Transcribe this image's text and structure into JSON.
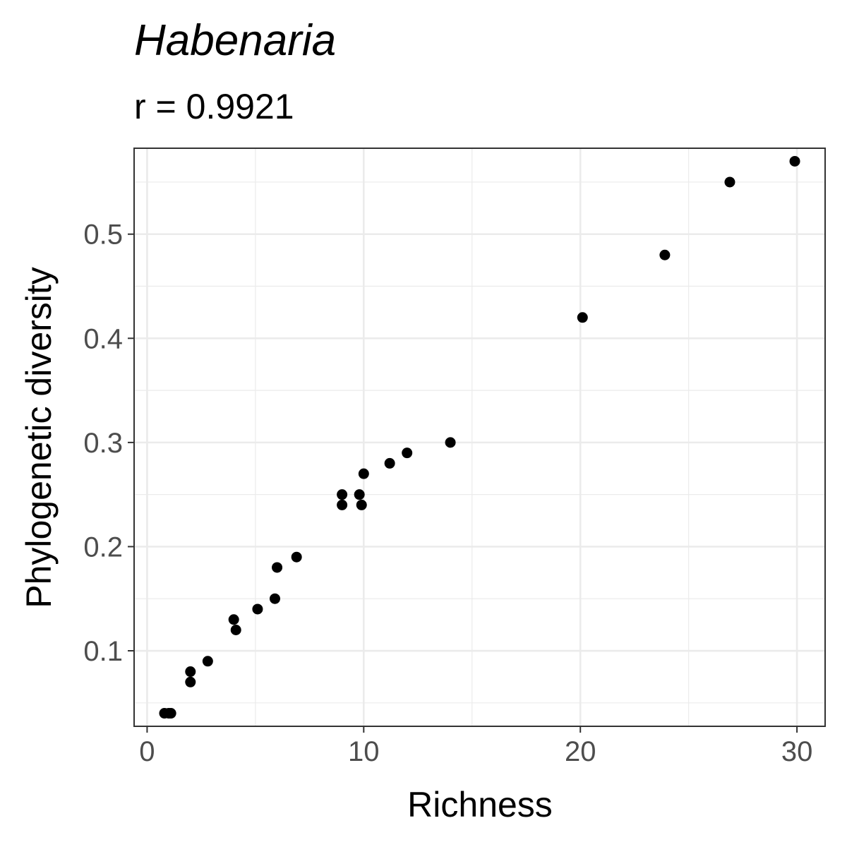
{
  "chart_data": {
    "type": "scatter",
    "title": "Habenaria",
    "subtitle": "r = 0.9921",
    "xlabel": "Richness",
    "ylabel": "Phylogenetic diversity",
    "xlim": [
      -0.6,
      31.3
    ],
    "ylim": [
      0.0275,
      0.5825
    ],
    "x_ticks": [
      0,
      10,
      20,
      30
    ],
    "y_ticks": [
      0.1,
      0.2,
      0.3,
      0.4,
      0.5
    ],
    "x_tick_labels": [
      "0",
      "10",
      "20",
      "30"
    ],
    "y_tick_labels": [
      "0.1",
      "0.2",
      "0.3",
      "0.4",
      "0.5"
    ],
    "grid": true,
    "point_color": "#000000",
    "points": [
      {
        "x": 0.8,
        "y": 0.04
      },
      {
        "x": 1.0,
        "y": 0.04
      },
      {
        "x": 1.1,
        "y": 0.04
      },
      {
        "x": 2.0,
        "y": 0.07
      },
      {
        "x": 2.0,
        "y": 0.08
      },
      {
        "x": 2.8,
        "y": 0.09
      },
      {
        "x": 4.0,
        "y": 0.13
      },
      {
        "x": 4.1,
        "y": 0.12
      },
      {
        "x": 5.1,
        "y": 0.14
      },
      {
        "x": 5.9,
        "y": 0.15
      },
      {
        "x": 6.0,
        "y": 0.18
      },
      {
        "x": 6.9,
        "y": 0.19
      },
      {
        "x": 9.0,
        "y": 0.25
      },
      {
        "x": 9.0,
        "y": 0.24
      },
      {
        "x": 9.8,
        "y": 0.25
      },
      {
        "x": 9.9,
        "y": 0.24
      },
      {
        "x": 10.0,
        "y": 0.27
      },
      {
        "x": 11.2,
        "y": 0.28
      },
      {
        "x": 12.0,
        "y": 0.29
      },
      {
        "x": 14.0,
        "y": 0.3
      },
      {
        "x": 20.1,
        "y": 0.42
      },
      {
        "x": 23.9,
        "y": 0.48
      },
      {
        "x": 26.9,
        "y": 0.55
      },
      {
        "x": 29.9,
        "y": 0.57
      }
    ]
  }
}
